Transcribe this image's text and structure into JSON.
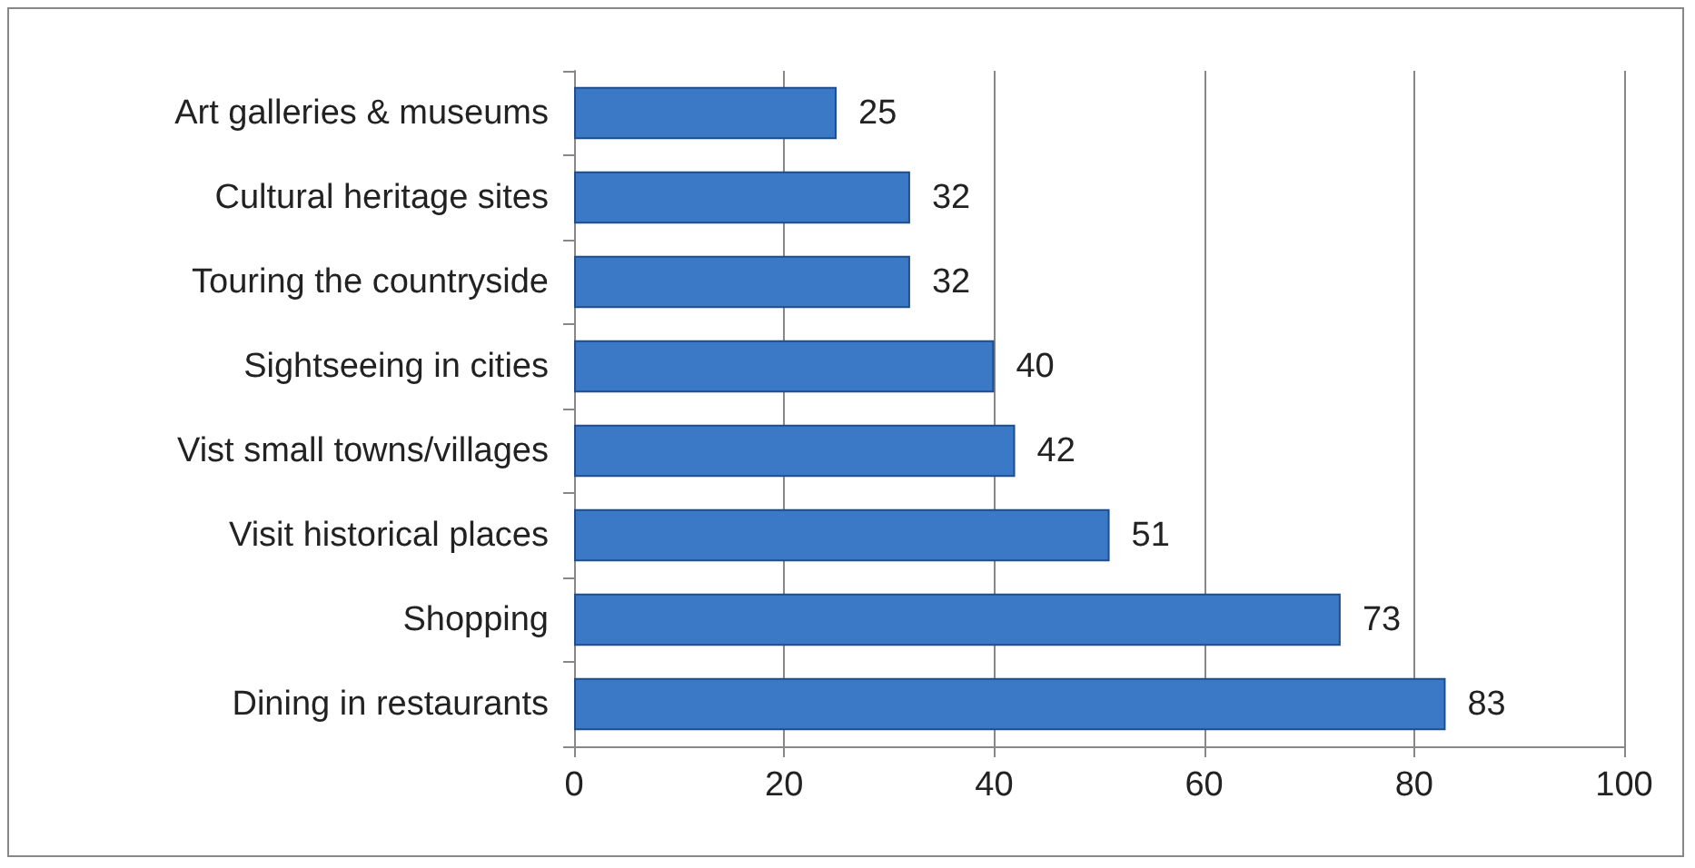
{
  "chart_data": {
    "type": "bar",
    "orientation": "horizontal",
    "categories": [
      "Art galleries & museums",
      "Cultural heritage sites",
      "Touring the countryside",
      "Sightseeing in cities",
      "Vist small towns/villages",
      "Visit historical places",
      "Shopping",
      "Dining in restaurants"
    ],
    "values": [
      25,
      32,
      32,
      40,
      42,
      51,
      73,
      83
    ],
    "color": "#3b78c6",
    "xlim": [
      0,
      100
    ],
    "xticks": [
      0,
      20,
      40,
      60,
      80,
      100
    ],
    "grid": "x",
    "data_labels": true
  }
}
